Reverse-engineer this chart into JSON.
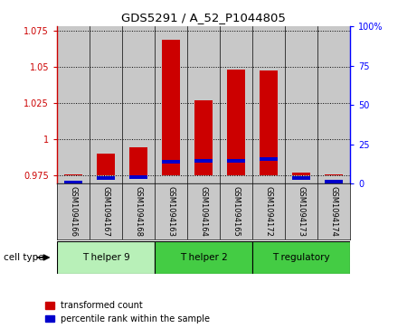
{
  "title": "GDS5291 / A_52_P1044805",
  "categories": [
    "GSM1094166",
    "GSM1094167",
    "GSM1094168",
    "GSM1094163",
    "GSM1094164",
    "GSM1094165",
    "GSM1094172",
    "GSM1094173",
    "GSM1094174"
  ],
  "red_values": [
    0.9762,
    0.9905,
    0.9945,
    1.0685,
    1.027,
    1.048,
    1.0475,
    0.977,
    0.9762
  ],
  "blue_values": [
    1.0,
    3.5,
    4.0,
    14.0,
    14.5,
    14.5,
    15.5,
    3.5,
    1.5
  ],
  "ylim_left": [
    0.9695,
    1.078
  ],
  "ylim_right": [
    0,
    100
  ],
  "yticks_left": [
    0.975,
    1.0,
    1.025,
    1.05,
    1.075
  ],
  "yticks_right": [
    0,
    25,
    50,
    75,
    100
  ],
  "ytick_labels_left": [
    "0.975",
    "1",
    "1.025",
    "1.05",
    "1.075"
  ],
  "ytick_labels_right": [
    "0",
    "25",
    "50",
    "75",
    "100%"
  ],
  "groups": [
    {
      "label": "T helper 9",
      "start": 0,
      "end": 2,
      "color": "#b8f0b8"
    },
    {
      "label": "T helper 2",
      "start": 3,
      "end": 5,
      "color": "#44cc44"
    },
    {
      "label": "T regulatory",
      "start": 6,
      "end": 8,
      "color": "#44cc44"
    }
  ],
  "bar_width": 0.55,
  "red_color": "#cc0000",
  "blue_color": "#0000cc",
  "background_color": "#ffffff",
  "cell_type_label": "cell type",
  "legend_red": "transformed count",
  "legend_blue": "percentile rank within the sample",
  "base_value": 0.975,
  "sample_bg_color": "#c8c8c8"
}
